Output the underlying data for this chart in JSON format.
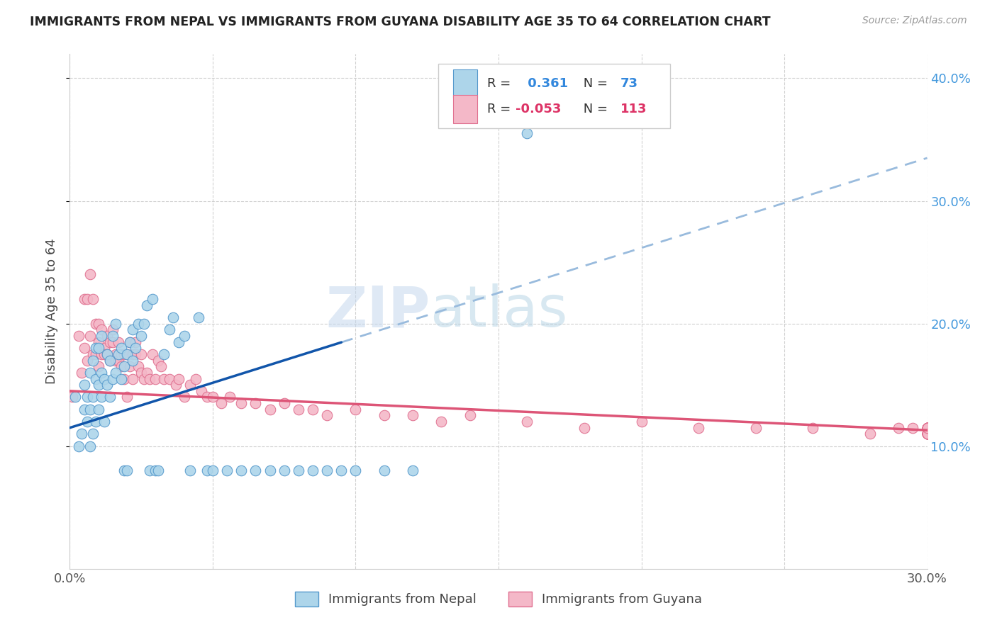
{
  "title": "IMMIGRANTS FROM NEPAL VS IMMIGRANTS FROM GUYANA DISABILITY AGE 35 TO 64 CORRELATION CHART",
  "source": "Source: ZipAtlas.com",
  "ylabel": "Disability Age 35 to 64",
  "xlim": [
    0.0,
    0.3
  ],
  "ylim": [
    0.0,
    0.42
  ],
  "xtick_positions": [
    0.0,
    0.05,
    0.1,
    0.15,
    0.2,
    0.25,
    0.3
  ],
  "xticklabels": [
    "0.0%",
    "",
    "",
    "",
    "",
    "",
    "30.0%"
  ],
  "ytick_positions": [
    0.1,
    0.2,
    0.3,
    0.4
  ],
  "ytick_labels_right": [
    "10.0%",
    "20.0%",
    "30.0%",
    "40.0%"
  ],
  "legend_labels": [
    "Immigrants from Nepal",
    "Immigrants from Guyana"
  ],
  "legend_R": [
    "0.361",
    "-0.053"
  ],
  "legend_N": [
    "73",
    "113"
  ],
  "nepal_color": "#add5ea",
  "guyana_color": "#f4b8c8",
  "nepal_edge_color": "#5599cc",
  "guyana_edge_color": "#e07090",
  "nepal_line_color": "#1155aa",
  "guyana_line_color": "#dd5577",
  "nepal_dash_color": "#99bbdd",
  "watermark": "ZIPatlas",
  "nepal_scatter_x": [
    0.002,
    0.003,
    0.004,
    0.005,
    0.005,
    0.006,
    0.006,
    0.007,
    0.007,
    0.007,
    0.008,
    0.008,
    0.008,
    0.009,
    0.009,
    0.009,
    0.01,
    0.01,
    0.01,
    0.011,
    0.011,
    0.011,
    0.012,
    0.012,
    0.013,
    0.013,
    0.014,
    0.014,
    0.015,
    0.015,
    0.016,
    0.016,
    0.017,
    0.018,
    0.018,
    0.019,
    0.019,
    0.02,
    0.02,
    0.021,
    0.022,
    0.022,
    0.023,
    0.024,
    0.025,
    0.026,
    0.027,
    0.028,
    0.029,
    0.03,
    0.031,
    0.033,
    0.035,
    0.036,
    0.038,
    0.04,
    0.042,
    0.045,
    0.048,
    0.05,
    0.055,
    0.06,
    0.065,
    0.07,
    0.075,
    0.08,
    0.085,
    0.09,
    0.095,
    0.1,
    0.11,
    0.12,
    0.16
  ],
  "nepal_scatter_y": [
    0.14,
    0.1,
    0.11,
    0.13,
    0.15,
    0.12,
    0.14,
    0.1,
    0.13,
    0.16,
    0.11,
    0.14,
    0.17,
    0.12,
    0.155,
    0.18,
    0.13,
    0.15,
    0.18,
    0.14,
    0.16,
    0.19,
    0.12,
    0.155,
    0.15,
    0.175,
    0.14,
    0.17,
    0.155,
    0.19,
    0.16,
    0.2,
    0.175,
    0.155,
    0.18,
    0.08,
    0.165,
    0.08,
    0.175,
    0.185,
    0.17,
    0.195,
    0.18,
    0.2,
    0.19,
    0.2,
    0.215,
    0.08,
    0.22,
    0.08,
    0.08,
    0.175,
    0.195,
    0.205,
    0.185,
    0.19,
    0.08,
    0.205,
    0.08,
    0.08,
    0.08,
    0.08,
    0.08,
    0.08,
    0.08,
    0.08,
    0.08,
    0.08,
    0.08,
    0.08,
    0.08,
    0.08,
    0.355
  ],
  "guyana_scatter_x": [
    0.001,
    0.003,
    0.004,
    0.005,
    0.005,
    0.006,
    0.006,
    0.007,
    0.007,
    0.008,
    0.008,
    0.009,
    0.009,
    0.01,
    0.01,
    0.01,
    0.011,
    0.011,
    0.012,
    0.012,
    0.013,
    0.013,
    0.014,
    0.014,
    0.015,
    0.015,
    0.016,
    0.016,
    0.017,
    0.017,
    0.018,
    0.018,
    0.019,
    0.019,
    0.02,
    0.02,
    0.021,
    0.021,
    0.022,
    0.022,
    0.023,
    0.023,
    0.024,
    0.025,
    0.025,
    0.026,
    0.027,
    0.028,
    0.029,
    0.03,
    0.031,
    0.032,
    0.033,
    0.035,
    0.037,
    0.038,
    0.04,
    0.042,
    0.044,
    0.046,
    0.048,
    0.05,
    0.053,
    0.056,
    0.06,
    0.065,
    0.07,
    0.075,
    0.08,
    0.085,
    0.09,
    0.1,
    0.11,
    0.12,
    0.13,
    0.14,
    0.16,
    0.18,
    0.2,
    0.22,
    0.24,
    0.26,
    0.28,
    0.29,
    0.295,
    0.3,
    0.3,
    0.3,
    0.3,
    0.3,
    0.3,
    0.3,
    0.3,
    0.3,
    0.3,
    0.3,
    0.3,
    0.3,
    0.3,
    0.3,
    0.3,
    0.3,
    0.3,
    0.3,
    0.3,
    0.3,
    0.3,
    0.3,
    0.3,
    0.3,
    0.3,
    0.3,
    0.3,
    0.3
  ],
  "guyana_scatter_y": [
    0.14,
    0.19,
    0.16,
    0.22,
    0.18,
    0.22,
    0.17,
    0.19,
    0.24,
    0.22,
    0.175,
    0.2,
    0.175,
    0.185,
    0.165,
    0.2,
    0.175,
    0.195,
    0.18,
    0.175,
    0.19,
    0.175,
    0.185,
    0.17,
    0.185,
    0.195,
    0.17,
    0.175,
    0.17,
    0.185,
    0.175,
    0.165,
    0.155,
    0.175,
    0.14,
    0.175,
    0.165,
    0.185,
    0.155,
    0.175,
    0.175,
    0.185,
    0.165,
    0.16,
    0.175,
    0.155,
    0.16,
    0.155,
    0.175,
    0.155,
    0.17,
    0.165,
    0.155,
    0.155,
    0.15,
    0.155,
    0.14,
    0.15,
    0.155,
    0.145,
    0.14,
    0.14,
    0.135,
    0.14,
    0.135,
    0.135,
    0.13,
    0.135,
    0.13,
    0.13,
    0.125,
    0.13,
    0.125,
    0.125,
    0.12,
    0.125,
    0.12,
    0.115,
    0.12,
    0.115,
    0.115,
    0.115,
    0.11,
    0.115,
    0.115,
    0.11,
    0.115,
    0.115,
    0.11,
    0.115,
    0.11,
    0.115,
    0.11,
    0.115,
    0.11,
    0.115,
    0.11,
    0.115,
    0.11,
    0.115,
    0.11,
    0.115,
    0.11,
    0.115,
    0.11,
    0.115,
    0.11,
    0.115,
    0.11,
    0.115,
    0.11,
    0.115,
    0.11,
    0.115
  ]
}
